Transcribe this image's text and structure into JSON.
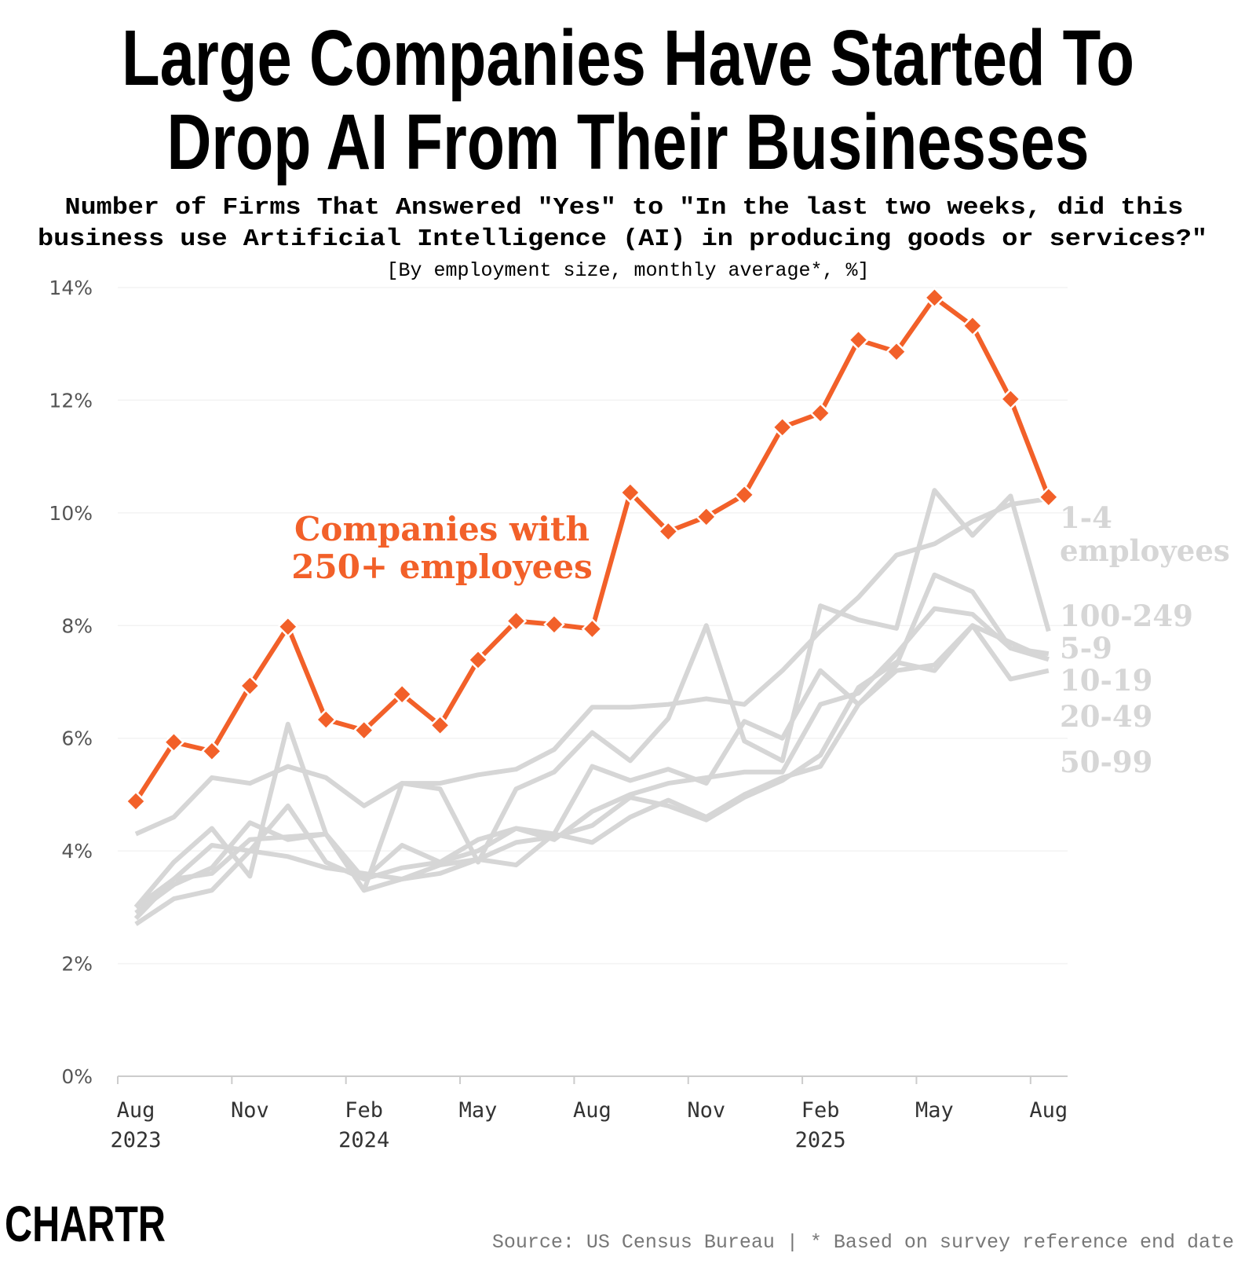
{
  "chart_data": {
    "type": "line",
    "title": "Large Companies Have Started To Drop AI From Their Businesses",
    "title_lines": [
      "Large Companies Have Started To",
      "Drop AI From Their Businesses"
    ],
    "subtitle_lines": [
      "Number of Firms That Answered \"Yes\" to \"In the last two weeks, did this",
      "business use Artificial Intelligence (AI) in producing goods or services?\""
    ],
    "note": "[By employment size, monthly average*, %]",
    "ylim": [
      0,
      14
    ],
    "yticks": [
      "0%",
      "2%",
      "4%",
      "6%",
      "8%",
      "10%",
      "12%",
      "14%"
    ],
    "grid": true,
    "x": [
      "2023-08",
      "2023-09",
      "2023-10",
      "2023-11",
      "2023-12",
      "2024-01",
      "2024-02",
      "2024-03",
      "2024-04",
      "2024-05",
      "2024-06",
      "2024-07",
      "2024-08",
      "2024-09",
      "2024-10",
      "2024-11",
      "2024-12",
      "2025-01",
      "2025-02",
      "2025-03",
      "2025-04",
      "2025-05",
      "2025-06",
      "2025-07",
      "2025-08"
    ],
    "xticks": [
      {
        "month": "Aug",
        "year": "2023"
      },
      {
        "month": "Nov",
        "year": ""
      },
      {
        "month": "Feb",
        "year": "2024"
      },
      {
        "month": "May",
        "year": ""
      },
      {
        "month": "Aug",
        "year": ""
      },
      {
        "month": "Nov",
        "year": ""
      },
      {
        "month": "Feb",
        "year": "2025"
      },
      {
        "month": "May",
        "year": ""
      },
      {
        "month": "Aug",
        "year": ""
      }
    ],
    "highlight_color": "#f26029",
    "other_color": "#d6d6d6",
    "annotation_lines": [
      "Companies with",
      "250+ employees"
    ],
    "series": [
      {
        "name": "250+ employees",
        "highlight": true,
        "values": [
          4.88,
          5.93,
          5.77,
          6.93,
          7.98,
          6.33,
          6.14,
          6.78,
          6.23,
          7.39,
          8.08,
          8.02,
          7.94,
          10.36,
          9.67,
          9.93,
          10.32,
          11.52,
          11.77,
          13.07,
          12.86,
          13.82,
          13.32,
          12.02,
          10.28
        ]
      },
      {
        "name": "1-4 employees",
        "label_lines": [
          "1-4",
          "employees"
        ],
        "values": [
          4.3,
          4.6,
          5.3,
          5.2,
          5.5,
          5.3,
          4.8,
          5.2,
          5.2,
          5.35,
          5.45,
          5.8,
          6.55,
          6.55,
          6.6,
          6.7,
          6.6,
          7.2,
          7.9,
          8.5,
          9.25,
          9.45,
          9.85,
          10.15,
          10.25
        ]
      },
      {
        "name": "100-249",
        "label_lines": [
          "100-249"
        ],
        "values": [
          3.0,
          3.8,
          4.4,
          3.55,
          6.25,
          4.3,
          3.3,
          5.2,
          5.1,
          3.8,
          5.1,
          5.4,
          6.1,
          5.6,
          6.35,
          8.0,
          5.95,
          5.6,
          8.35,
          8.1,
          7.95,
          10.4,
          9.6,
          10.3,
          7.9
        ]
      },
      {
        "name": "5-9",
        "label_lines": [
          "5-9"
        ],
        "values": [
          2.9,
          3.4,
          3.7,
          4.5,
          4.2,
          4.3,
          3.5,
          4.1,
          3.8,
          4.2,
          4.4,
          4.3,
          5.5,
          5.25,
          5.45,
          5.2,
          6.3,
          6.0,
          7.2,
          6.6,
          7.3,
          8.9,
          8.6,
          7.6,
          7.5
        ]
      },
      {
        "name": "10-19",
        "label_lines": [
          "10-19"
        ],
        "values": [
          2.8,
          3.5,
          4.1,
          4.0,
          4.8,
          3.8,
          3.5,
          3.7,
          3.8,
          4.0,
          4.4,
          4.2,
          4.7,
          5.0,
          5.2,
          5.3,
          5.4,
          5.4,
          6.6,
          6.8,
          7.5,
          8.3,
          8.2,
          7.6,
          7.4
        ]
      },
      {
        "name": "20-49",
        "label_lines": [
          "20-49"
        ],
        "values": [
          2.7,
          3.15,
          3.3,
          4.0,
          3.9,
          3.7,
          3.6,
          3.5,
          3.6,
          3.85,
          3.75,
          4.3,
          4.15,
          4.6,
          4.9,
          4.6,
          5.0,
          5.3,
          5.5,
          6.6,
          7.2,
          7.3,
          8.0,
          7.05,
          7.2
        ]
      },
      {
        "name": "50-99",
        "label_lines": [
          "50-99"
        ],
        "values": [
          3.0,
          3.5,
          3.6,
          4.2,
          4.25,
          4.3,
          3.3,
          3.5,
          3.75,
          3.85,
          4.15,
          4.25,
          4.45,
          4.95,
          4.8,
          4.55,
          4.95,
          5.25,
          5.7,
          6.9,
          7.35,
          7.2,
          8.0,
          7.7,
          7.4
        ]
      }
    ]
  },
  "footer": {
    "source": "Source: US Census Bureau | * Based on survey reference end date",
    "logo": "CHARTR"
  }
}
